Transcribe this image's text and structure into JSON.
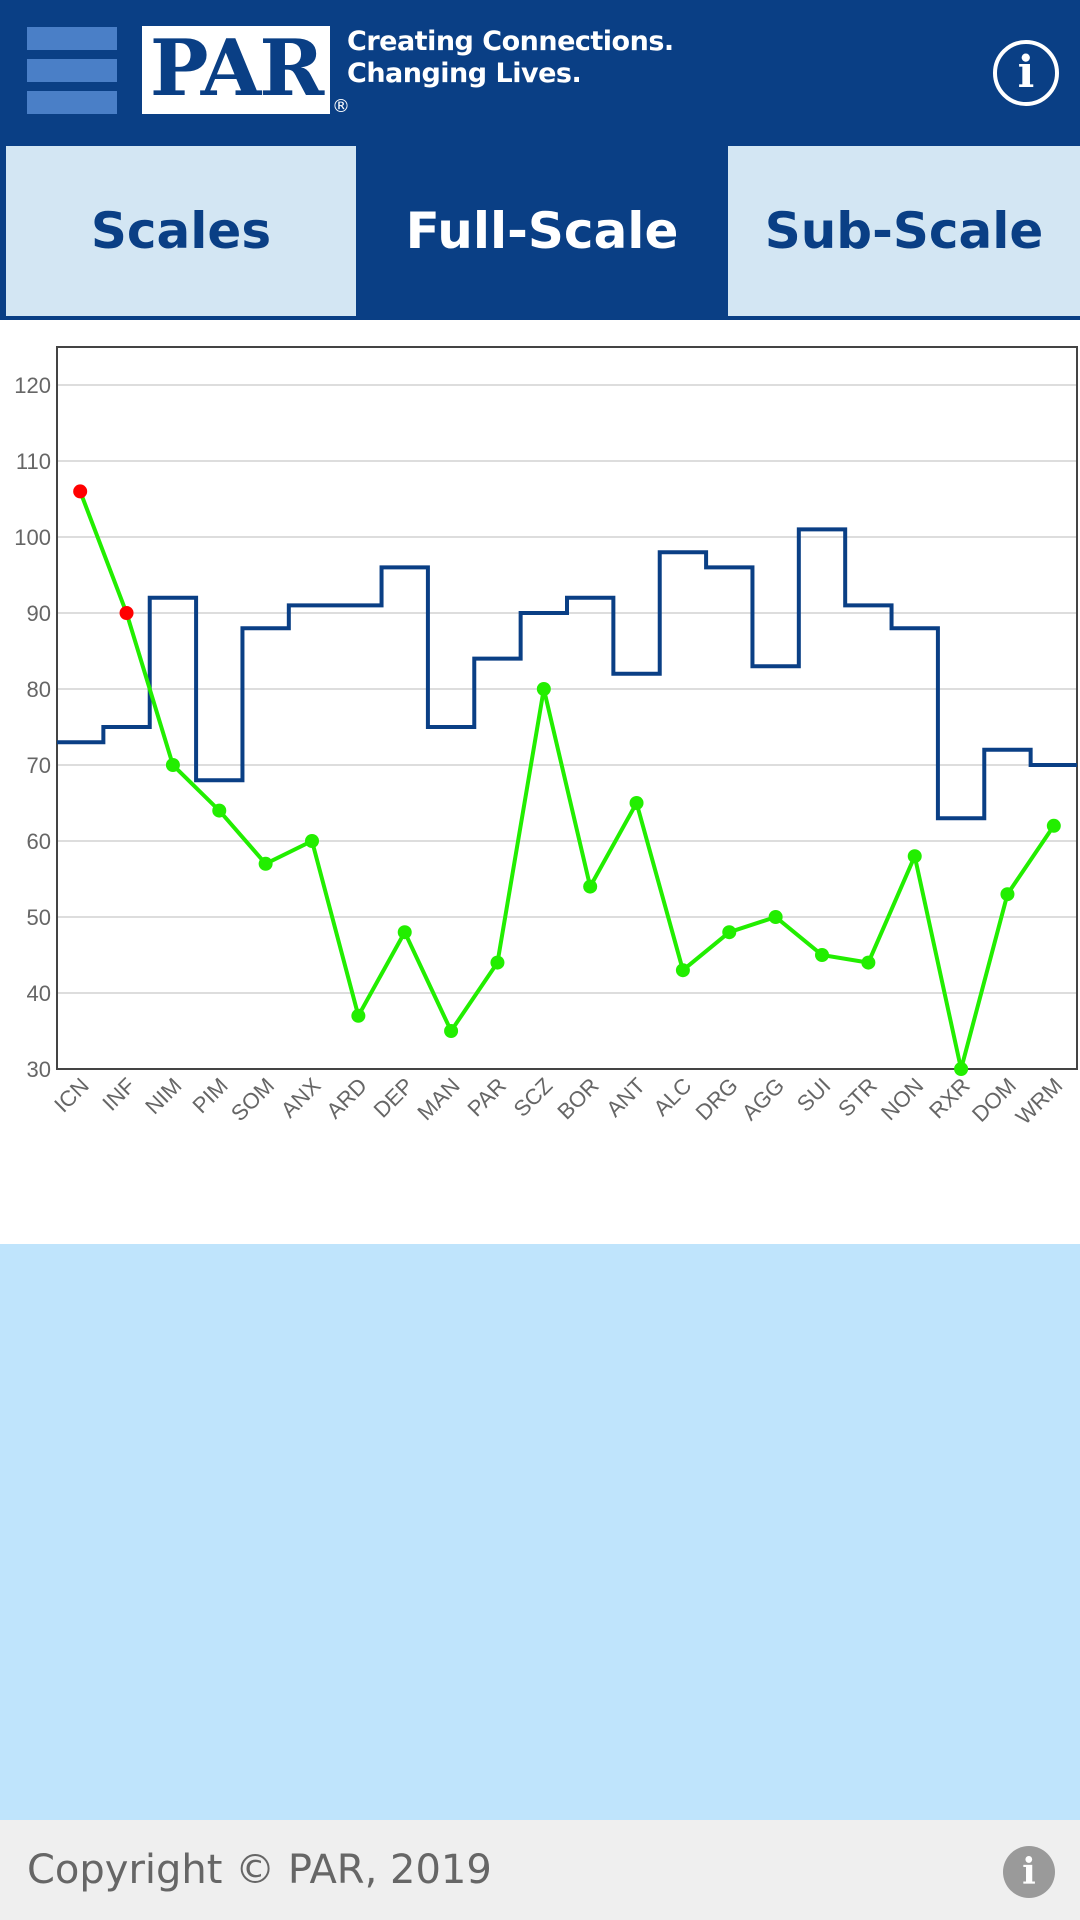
{
  "header": {
    "logo_text": "PAR",
    "logo_registered": "®",
    "tagline_line1": "Creating Connections.",
    "tagline_line2": "Changing Lives.",
    "info_icon": "i"
  },
  "tabs": [
    {
      "label": "Scales",
      "active": false
    },
    {
      "label": "Full-Scale",
      "active": true
    },
    {
      "label": "Sub-Scale",
      "active": false
    }
  ],
  "colors": {
    "header_bg": "#0a3f85",
    "tab_inactive_bg": "#d3e6f3",
    "blue_area_bg": "#bfe4fc",
    "series_step": "#0a3f85",
    "series_line": "#22ee00",
    "flag_point": "#ff0000"
  },
  "chart_data": {
    "type": "line",
    "title": "",
    "xlabel": "",
    "ylabel": "",
    "ylim": [
      30,
      125
    ],
    "yticks": [
      30,
      40,
      50,
      60,
      70,
      80,
      90,
      100,
      110,
      120
    ],
    "grid": true,
    "categories": [
      "ICN",
      "INF",
      "NIM",
      "PIM",
      "SOM",
      "ANX",
      "ARD",
      "DEP",
      "MAN",
      "PAR",
      "SCZ",
      "BOR",
      "ANT",
      "ALC",
      "DRG",
      "AGG",
      "SUI",
      "STR",
      "NON",
      "RXR",
      "DOM",
      "WRM"
    ],
    "series": [
      {
        "style": "step",
        "color": "#0a3f85",
        "values": [
          73,
          75,
          92,
          68,
          88,
          91,
          91,
          96,
          75,
          84,
          90,
          92,
          82,
          98,
          96,
          83,
          101,
          91,
          88,
          63,
          72,
          70
        ]
      },
      {
        "style": "line-markers",
        "color": "#22ee00",
        "values": [
          106,
          90,
          70,
          64,
          57,
          60,
          37,
          48,
          35,
          44,
          80,
          54,
          65,
          43,
          48,
          50,
          45,
          44,
          58,
          30,
          53,
          62
        ],
        "flagged_indices": [
          0,
          1
        ],
        "flagged_color": "#ff0000"
      }
    ]
  },
  "footer": {
    "copyright": "Copyright © PAR, 2019",
    "info_icon": "i"
  }
}
